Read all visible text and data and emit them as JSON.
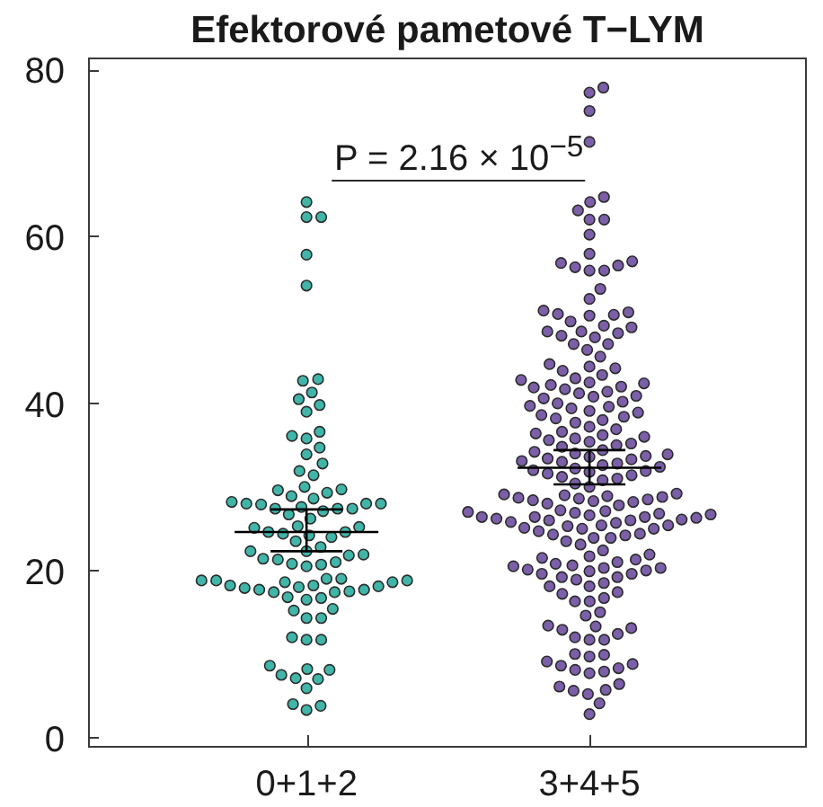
{
  "chart_data": {
    "type": "scatter",
    "title": "Efektorové pametové T−LYM",
    "categories": [
      "0+1+2",
      "3+4+5"
    ],
    "series": [
      {
        "color": "#40b5a8",
        "x": [
          "0+1+2",
          "0+1+2",
          "0+1+2",
          "0+1+2",
          "0+1+2",
          "0+1+2",
          "0+1+2",
          "0+1+2",
          "0+1+2",
          "0+1+2",
          "0+1+2",
          "0+1+2",
          "0+1+2",
          "0+1+2",
          "0+1+2",
          "0+1+2",
          "0+1+2",
          "0+1+2",
          "0+1+2",
          "0+1+2",
          "0+1+2",
          "0+1+2",
          "0+1+2",
          "0+1+2",
          "0+1+2",
          "0+1+2",
          "0+1+2",
          "0+1+2",
          "0+1+2",
          "0+1+2",
          "0+1+2",
          "0+1+2",
          "0+1+2",
          "0+1+2",
          "0+1+2",
          "0+1+2",
          "0+1+2",
          "0+1+2",
          "0+1+2",
          "0+1+2",
          "0+1+2",
          "0+1+2",
          "0+1+2",
          "0+1+2",
          "0+1+2",
          "0+1+2",
          "0+1+2",
          "0+1+2",
          "0+1+2",
          "0+1+2",
          "0+1+2",
          "0+1+2",
          "0+1+2",
          "0+1+2",
          "0+1+2",
          "0+1+2",
          "0+1+2",
          "0+1+2",
          "0+1+2",
          "0+1+2",
          "0+1+2",
          "0+1+2",
          "0+1+2",
          "0+1+2",
          "0+1+2",
          "0+1+2",
          "0+1+2",
          "0+1+2",
          "0+1+2",
          "0+1+2",
          "0+1+2",
          "0+1+2",
          "0+1+2",
          "0+1+2",
          "0+1+2",
          "0+1+2",
          "0+1+2",
          "0+1+2",
          "0+1+2",
          "0+1+2",
          "0+1+2",
          "0+1+2",
          "0+1+2",
          "0+1+2",
          "0+1+2",
          "0+1+2",
          "0+1+2",
          "0+1+2",
          "0+1+2",
          "0+1+2",
          "0+1+2",
          "0+1+2",
          "0+1+2",
          "0+1+2"
        ],
        "values": [
          64.1,
          62.3,
          62.3,
          57.8,
          54.1,
          42.7,
          42.9,
          41.3,
          40.5,
          39.0,
          39.8,
          36.6,
          33.9,
          34.7,
          35.8,
          36.1,
          32.8,
          31.4,
          31.9,
          29.6,
          29.3,
          30.0,
          28.9,
          27.4,
          28.0,
          28.6,
          29.7,
          26.2,
          26.7,
          28.0,
          28.2,
          27.9,
          27.6,
          27.4,
          27.4,
          28.0,
          27.1,
          25.2,
          25.3,
          25.1,
          24.6,
          24.6,
          24.0,
          24.2,
          24.4,
          23.5,
          22.8,
          22.3,
          21.8,
          21.3,
          20.7,
          20.5,
          20.8,
          21.0,
          21.4,
          21.9,
          22.3,
          19.0,
          19.0,
          18.8,
          18.6,
          18.2,
          17.9,
          17.4,
          16.8,
          17.7,
          18.1,
          17.5,
          16.7,
          16.5,
          17.4,
          17.7,
          18.0,
          18.2,
          18.6,
          18.8,
          18.8,
          15.4,
          15.2,
          14.3,
          14.3,
          12.0,
          11.7,
          11.7,
          8.6,
          8.1,
          7.5,
          7.0,
          7.1,
          8.2,
          5.9,
          4.0,
          3.3,
          3.8
        ]
      },
      {
        "color": "#7b5fa8",
        "x": [
          "3+4+5",
          "3+4+5",
          "3+4+5",
          "3+4+5",
          "3+4+5",
          "3+4+5",
          "3+4+5",
          "3+4+5",
          "3+4+5",
          "3+4+5",
          "3+4+5",
          "3+4+5",
          "3+4+5",
          "3+4+5",
          "3+4+5",
          "3+4+5",
          "3+4+5",
          "3+4+5",
          "3+4+5",
          "3+4+5",
          "3+4+5",
          "3+4+5",
          "3+4+5",
          "3+4+5",
          "3+4+5",
          "3+4+5",
          "3+4+5",
          "3+4+5",
          "3+4+5",
          "3+4+5",
          "3+4+5",
          "3+4+5",
          "3+4+5",
          "3+4+5",
          "3+4+5",
          "3+4+5",
          "3+4+5",
          "3+4+5",
          "3+4+5",
          "3+4+5",
          "3+4+5",
          "3+4+5",
          "3+4+5",
          "3+4+5",
          "3+4+5",
          "3+4+5",
          "3+4+5",
          "3+4+5",
          "3+4+5",
          "3+4+5",
          "3+4+5",
          "3+4+5",
          "3+4+5",
          "3+4+5",
          "3+4+5",
          "3+4+5",
          "3+4+5",
          "3+4+5",
          "3+4+5",
          "3+4+5",
          "3+4+5",
          "3+4+5",
          "3+4+5",
          "3+4+5",
          "3+4+5",
          "3+4+5",
          "3+4+5",
          "3+4+5",
          "3+4+5",
          "3+4+5",
          "3+4+5",
          "3+4+5",
          "3+4+5",
          "3+4+5",
          "3+4+5",
          "3+4+5",
          "3+4+5",
          "3+4+5",
          "3+4+5",
          "3+4+5",
          "3+4+5",
          "3+4+5",
          "3+4+5",
          "3+4+5",
          "3+4+5",
          "3+4+5",
          "3+4+5",
          "3+4+5",
          "3+4+5",
          "3+4+5",
          "3+4+5",
          "3+4+5",
          "3+4+5",
          "3+4+5",
          "3+4+5",
          "3+4+5",
          "3+4+5",
          "3+4+5",
          "3+4+5",
          "3+4+5",
          "3+4+5",
          "3+4+5",
          "3+4+5",
          "3+4+5",
          "3+4+5",
          "3+4+5",
          "3+4+5",
          "3+4+5",
          "3+4+5",
          "3+4+5",
          "3+4+5",
          "3+4+5",
          "3+4+5",
          "3+4+5",
          "3+4+5",
          "3+4+5",
          "3+4+5",
          "3+4+5",
          "3+4+5",
          "3+4+5",
          "3+4+5",
          "3+4+5",
          "3+4+5",
          "3+4+5",
          "3+4+5",
          "3+4+5",
          "3+4+5",
          "3+4+5",
          "3+4+5",
          "3+4+5",
          "3+4+5",
          "3+4+5",
          "3+4+5",
          "3+4+5",
          "3+4+5",
          "3+4+5",
          "3+4+5",
          "3+4+5",
          "3+4+5",
          "3+4+5",
          "3+4+5",
          "3+4+5",
          "3+4+5",
          "3+4+5",
          "3+4+5",
          "3+4+5",
          "3+4+5",
          "3+4+5",
          "3+4+5",
          "3+4+5",
          "3+4+5",
          "3+4+5",
          "3+4+5",
          "3+4+5",
          "3+4+5",
          "3+4+5",
          "3+4+5",
          "3+4+5",
          "3+4+5",
          "3+4+5",
          "3+4+5",
          "3+4+5",
          "3+4+5",
          "3+4+5",
          "3+4+5",
          "3+4+5",
          "3+4+5",
          "3+4+5",
          "3+4+5",
          "3+4+5",
          "3+4+5",
          "3+4+5",
          "3+4+5",
          "3+4+5",
          "3+4+5",
          "3+4+5",
          "3+4+5",
          "3+4+5",
          "3+4+5",
          "3+4+5",
          "3+4+5",
          "3+4+5",
          "3+4+5",
          "3+4+5",
          "3+4+5",
          "3+4+5",
          "3+4+5",
          "3+4+5",
          "3+4+5",
          "3+4+5",
          "3+4+5",
          "3+4+5",
          "3+4+5",
          "3+4+5",
          "3+4+5",
          "3+4+5",
          "3+4+5",
          "3+4+5",
          "3+4+5",
          "3+4+5"
        ],
        "values": [
          77.8,
          77.2,
          75.0,
          71.3,
          64.7,
          64.1,
          63.1,
          62.0,
          62.0,
          60.2,
          57.9,
          57.0,
          56.8,
          55.9,
          56.3,
          55.9,
          56.5,
          53.7,
          52.5,
          51.1,
          50.7,
          49.3,
          50.6,
          49.8,
          49.1,
          48.6,
          48.1,
          47.9,
          47.1,
          45.6,
          46.4,
          47.1,
          48.4,
          48.6,
          50.9,
          50.5,
          43.9,
          44.4,
          43.4,
          43.0,
          44.2,
          44.7,
          42.5,
          42.0,
          41.4,
          40.9,
          40.6,
          42.2,
          42.4,
          41.7,
          41.2,
          40.8,
          41.9,
          42.8,
          40.0,
          39.4,
          38.9,
          38.4,
          38.0,
          39.6,
          39.1,
          38.6,
          38.2,
          40.2,
          39.7,
          37.7,
          36.9,
          36.4,
          36.0,
          35.6,
          35.2,
          34.8,
          36.2,
          35.8,
          35.4,
          35.0,
          36.6,
          37.2,
          34.4,
          34.0,
          33.6,
          34.2,
          33.9,
          33.4,
          33.0,
          32.6,
          32.2,
          31.8,
          31.4,
          31.0,
          33.3,
          32.8,
          32.4,
          32.0,
          31.6,
          31.2,
          30.8,
          30.4,
          30.0,
          31.9,
          33.1,
          33.7,
          29.2,
          29.0,
          28.8,
          28.6,
          28.4,
          28.2,
          28.0,
          27.8,
          29.1,
          28.9,
          28.7,
          28.5,
          28.3,
          26.4,
          26.2,
          26.0,
          25.7,
          25.4,
          25.0,
          24.7,
          24.3,
          23.9,
          26.0,
          25.1,
          25.3,
          26.4,
          24.4,
          23.1,
          23.5,
          23.9,
          24.2,
          25.0,
          25.4,
          25.8,
          26.1,
          26.3,
          26.4,
          26.6,
          26.8,
          27.0,
          27.2,
          26.7,
          26.9,
          27.1,
          21.3,
          20.8,
          20.5,
          20.3,
          20.1,
          19.9,
          19.6,
          19.2,
          21.7,
          21.5,
          21.0,
          18.1,
          18.1,
          18.5,
          18.9,
          19.2,
          19.6,
          20.0,
          20.3,
          20.6,
          21.9,
          22.4,
          16.3,
          16.3,
          14.6,
          15.0,
          16.7,
          17.4,
          17.2,
          12.9,
          11.7,
          12.4,
          11.7,
          12.0,
          13.1,
          13.3,
          13.4,
          10.0,
          9.9,
          9.7,
          8.8,
          9.1,
          8.6,
          8.1,
          7.9,
          8.3,
          7.7,
          6.4,
          6.1,
          5.6,
          5.7,
          5.2,
          4.1,
          2.8
        ]
      },
      {
        "type": "box",
        "color": "#000000",
        "boxes": [
          {
            "low": 22.3,
            "q1": 24.6,
            "median": 24.6,
            "q3": 24.6,
            "high": 27.3
          },
          {
            "low": 30.3,
            "q1": 32.3,
            "median": 32.3,
            "q3": 32.3,
            "high": 34.4
          }
        ]
      }
    ],
    "ylim": [
      -1.0,
      81.4
    ],
    "yticks": [
      0,
      20,
      40,
      60,
      80
    ],
    "marker": "circle",
    "annotations": [
      "P = 2.16 × 10$^{−5}$"
    ]
  }
}
